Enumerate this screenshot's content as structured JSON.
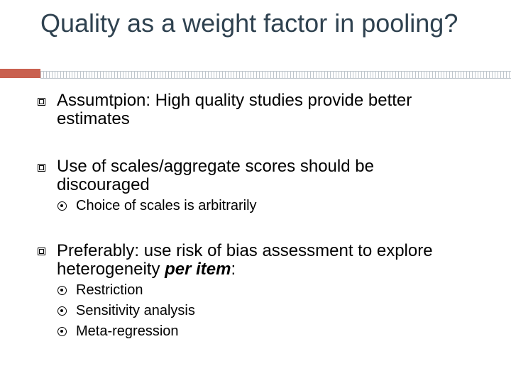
{
  "slide": {
    "title": "Quality as a weight factor in pooling?",
    "bullets": [
      {
        "text": "Assumtpion: High quality studies provide better estimates"
      },
      {
        "text": "Use of scales/aggregate scores should be discouraged",
        "subitems": [
          "Choice of scales is arbitrarily"
        ]
      },
      {
        "text_before": "Preferably: use risk of bias assessment to explore heterogeneity ",
        "text_emphasis": "per item",
        "text_after": ":",
        "subitems": [
          "Restriction",
          "Sensitivity analysis",
          "Meta-regression"
        ]
      }
    ],
    "colors": {
      "title": "#2f4250",
      "accent": "#c9604f",
      "rule": "#bfc6cc"
    },
    "icons": {
      "bullet": "square-bullet-icon",
      "sub_bullet": "circle-bullet-icon"
    }
  }
}
